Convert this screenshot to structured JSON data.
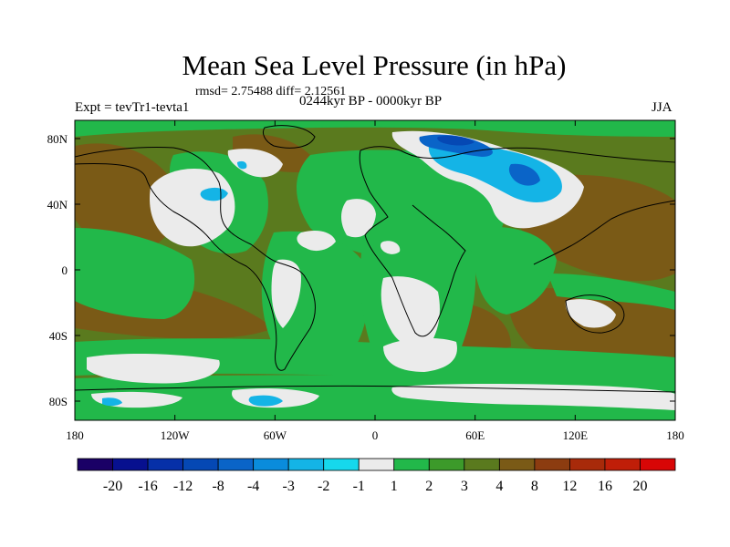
{
  "title": "Mean Sea Level Pressure (in hPa)",
  "stats": "rmsd= 2.75488 diff= 2.12561",
  "experiment": "Expt = tevTr1-tevta1",
  "period": "0244kyr BP - 0000kyr BP",
  "season": "JJA",
  "lat_labels": [
    "80N",
    "40N",
    "0",
    "40S",
    "80S"
  ],
  "lon_labels": [
    "180",
    "120W",
    "60W",
    "0",
    "60E",
    "120E",
    "180"
  ],
  "colorbar": {
    "labels": [
      "-20",
      "-16",
      "-12",
      "-8",
      "-4",
      "-3",
      "-2",
      "-1",
      "1",
      "2",
      "3",
      "4",
      "8",
      "12",
      "16",
      "20"
    ],
    "colors": [
      "#1a0066",
      "#07108f",
      "#0630a8",
      "#0548b4",
      "#0a64c8",
      "#0a8cdc",
      "#14b4e6",
      "#16d8ec",
      "#ebebeb",
      "#22b84a",
      "#3c9a2a",
      "#5a7a1e",
      "#7a5a16",
      "#8c3c10",
      "#a82a0a",
      "#c01e08",
      "#d80606"
    ]
  },
  "map_colors": {
    "background": "#5a7a1e",
    "brown": "#7a5a16",
    "green": "#22b84a",
    "white": "#ebebeb",
    "cyan": "#14b4e6",
    "blue": "#0a64c8",
    "deep_blue": "#0548b4",
    "coast": "#000000"
  }
}
